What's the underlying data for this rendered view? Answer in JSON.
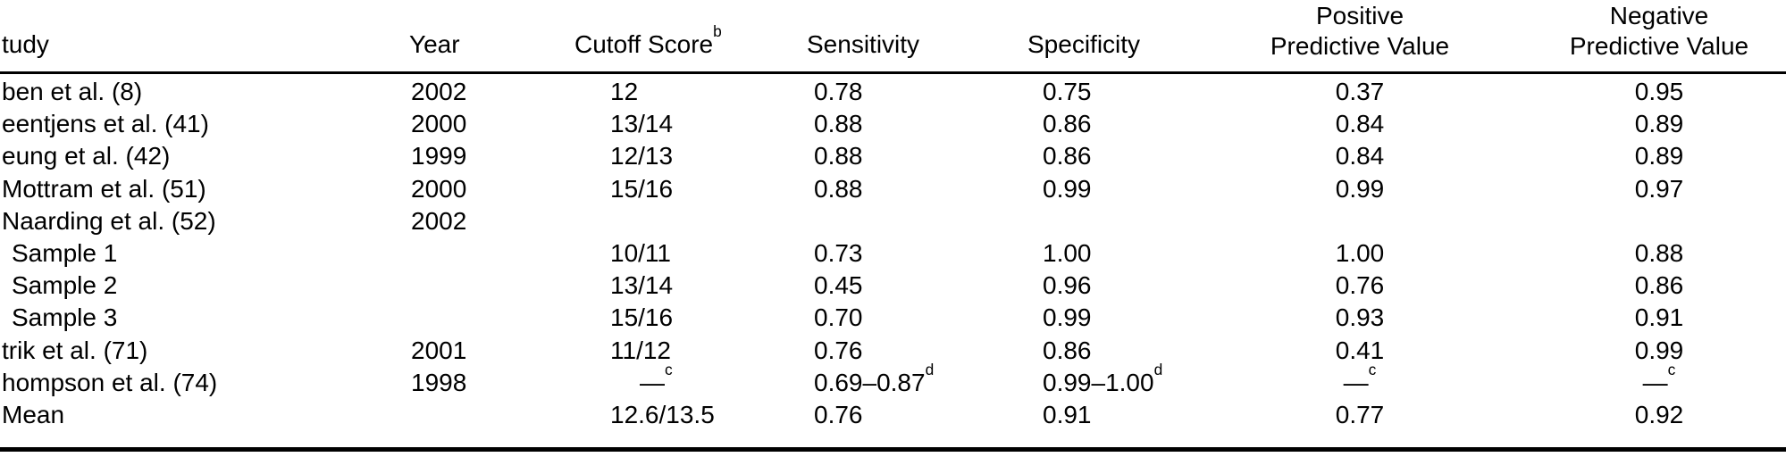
{
  "table": {
    "columns": {
      "study": "tudy",
      "year": "Year",
      "cutoff": {
        "text": "Cutoff Score",
        "sup": "b"
      },
      "sensitivity": "Sensitivity",
      "specificity": "Specificity",
      "ppv": {
        "line1": "Positive",
        "line2": "Predictive Value"
      },
      "npv": {
        "line1": "Negative",
        "line2": "Predictive Value"
      }
    },
    "rows": [
      {
        "study": "ben et al. (8)",
        "year": "2002",
        "cutoff": "12",
        "sensitivity": "0.78",
        "specificity": "0.75",
        "ppv": "0.37",
        "npv": "0.95"
      },
      {
        "study": "eentjens et al. (41)",
        "year": "2000",
        "cutoff": "13/14",
        "sensitivity": "0.88",
        "specificity": "0.86",
        "ppv": "0.84",
        "npv": "0.89"
      },
      {
        "study": "eung et al. (42)",
        "year": "1999",
        "cutoff": "12/13",
        "sensitivity": "0.88",
        "specificity": "0.86",
        "ppv": "0.84",
        "npv": "0.89"
      },
      {
        "study": "Mottram et al. (51)",
        "year": "2000",
        "cutoff": "15/16",
        "sensitivity": "0.88",
        "specificity": "0.99",
        "ppv": "0.99",
        "npv": "0.97"
      },
      {
        "study": "Naarding et al. (52)",
        "year": "2002",
        "cutoff": "",
        "sensitivity": "",
        "specificity": "",
        "ppv": "",
        "npv": ""
      },
      {
        "study": "Sample 1",
        "year": "",
        "cutoff": "10/11",
        "sensitivity": "0.73",
        "specificity": "1.00",
        "ppv": "1.00",
        "npv": "0.88"
      },
      {
        "study": "Sample 2",
        "year": "",
        "cutoff": "13/14",
        "sensitivity": "0.45",
        "specificity": "0.96",
        "ppv": "0.76",
        "npv": "0.86"
      },
      {
        "study": "Sample 3",
        "year": "",
        "cutoff": "15/16",
        "sensitivity": "0.70",
        "specificity": "0.99",
        "ppv": "0.93",
        "npv": "0.91"
      },
      {
        "study": "trik et al. (71)",
        "year": "2001",
        "cutoff": "11/12",
        "sensitivity": "0.76",
        "specificity": "0.86",
        "ppv": "0.41",
        "npv": "0.99"
      },
      {
        "study": "hompson et al. (74)",
        "year": "1998",
        "cutoff_text": "—",
        "cutoff_sup": "c",
        "sensitivity_text": "0.69–0.87",
        "sensitivity_sup": "d",
        "specificity_text": "0.99–1.00",
        "specificity_sup": "d",
        "ppv_text": "—",
        "ppv_sup": "c",
        "npv_text": "—",
        "npv_sup": "c"
      },
      {
        "study": "Mean",
        "year": "",
        "cutoff": "12.6/13.5",
        "sensitivity": "0.76",
        "specificity": "0.91",
        "ppv": "0.77",
        "npv": "0.92"
      }
    ]
  }
}
